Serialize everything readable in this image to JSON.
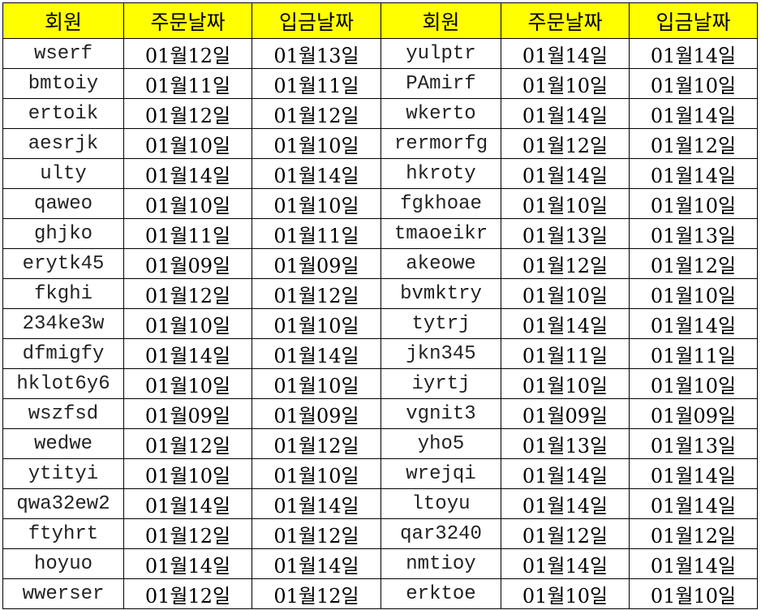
{
  "colors": {
    "header_bg": "#ffff00",
    "grid": "#000000"
  },
  "headers": [
    "회원",
    "주문날짜",
    "입금날짜",
    "회원",
    "주문날짜",
    "입금날짜"
  ],
  "rows": [
    [
      "wserf",
      "01월12일",
      "01월13일",
      "yulptr",
      "01월14일",
      "01월14일"
    ],
    [
      "bmtoiy",
      "01월11일",
      "01월11일",
      "PAmirf",
      "01월10일",
      "01월10일"
    ],
    [
      "ertoik",
      "01월12일",
      "01월12일",
      "wkerto",
      "01월14일",
      "01월14일"
    ],
    [
      "aesrjk",
      "01월10일",
      "01월10일",
      "rermorfg",
      "01월12일",
      "01월12일"
    ],
    [
      "ulty",
      "01월14일",
      "01월14일",
      "hkroty",
      "01월14일",
      "01월14일"
    ],
    [
      "qaweo",
      "01월10일",
      "01월10일",
      "fgkhoae",
      "01월10일",
      "01월10일"
    ],
    [
      "ghjko",
      "01월11일",
      "01월11일",
      "tmaoeikr",
      "01월13일",
      "01월13일"
    ],
    [
      "erytk45",
      "01월09일",
      "01월09일",
      "akeowe",
      "01월12일",
      "01월12일"
    ],
    [
      "fkghi",
      "01월12일",
      "01월12일",
      "bvmktry",
      "01월10일",
      "01월10일"
    ],
    [
      "234ke3w",
      "01월10일",
      "01월10일",
      "tytrj",
      "01월14일",
      "01월14일"
    ],
    [
      "dfmigfy",
      "01월14일",
      "01월14일",
      "jkn345",
      "01월11일",
      "01월11일"
    ],
    [
      "hklot6y6",
      "01월10일",
      "01월10일",
      "iyrtj",
      "01월10일",
      "01월10일"
    ],
    [
      "wszfsd",
      "01월09일",
      "01월09일",
      "vgnit3",
      "01월09일",
      "01월09일"
    ],
    [
      "wedwe",
      "01월12일",
      "01월12일",
      "yho5",
      "01월13일",
      "01월13일"
    ],
    [
      "ytityi",
      "01월10일",
      "01월10일",
      "wrejqi",
      "01월14일",
      "01월14일"
    ],
    [
      "qwa32ew2",
      "01월14일",
      "01월14일",
      "ltoyu",
      "01월14일",
      "01월14일"
    ],
    [
      "ftyhrt",
      "01월12일",
      "01월12일",
      "qar3240",
      "01월12일",
      "01월12일"
    ],
    [
      "hoyuo",
      "01월14일",
      "01월14일",
      "nmtioy",
      "01월14일",
      "01월14일"
    ],
    [
      "wwerser",
      "01월12일",
      "01월12일",
      "erktoe",
      "01월10일",
      "01월10일"
    ]
  ]
}
